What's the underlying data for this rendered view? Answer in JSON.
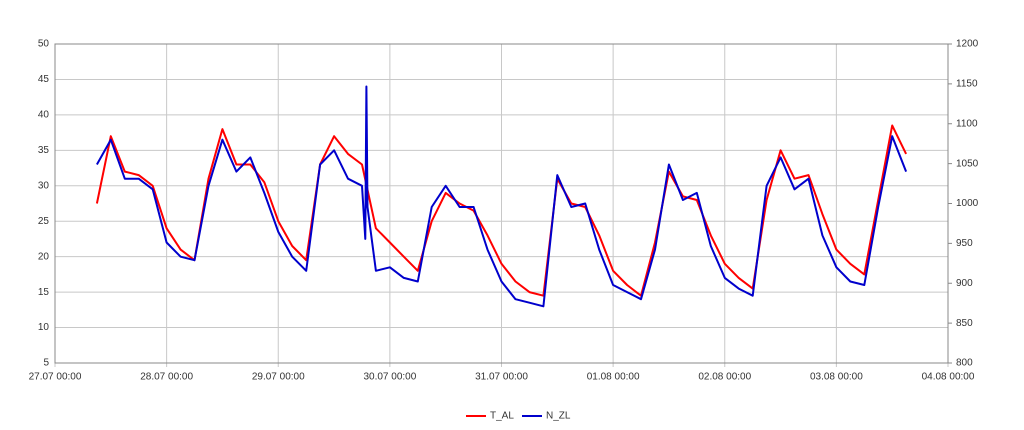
{
  "chart_data": {
    "type": "line",
    "xlim": [
      0,
      8
    ],
    "xticks": [
      {
        "value": 0,
        "label": "27.07 00:00"
      },
      {
        "value": 1,
        "label": "28.07 00:00"
      },
      {
        "value": 2,
        "label": "29.07 00:00"
      },
      {
        "value": 3,
        "label": "30.07 00:00"
      },
      {
        "value": 4,
        "label": "31.07 00:00"
      },
      {
        "value": 5,
        "label": "01.08 00:00"
      },
      {
        "value": 6,
        "label": "02.08 00:00"
      },
      {
        "value": 7,
        "label": "03.08 00:00"
      },
      {
        "value": 8,
        "label": "04.08 00:00"
      }
    ],
    "ylim": [
      5,
      50
    ],
    "yticks": [
      5,
      10,
      15,
      20,
      25,
      30,
      35,
      40,
      45,
      50
    ],
    "y2lim": [
      800,
      1200
    ],
    "y2ticks": [
      800,
      850,
      900,
      950,
      1000,
      1050,
      1100,
      1150,
      1200
    ],
    "grid": true,
    "legend": "bottom",
    "series": [
      {
        "name": "T_AL",
        "color": "#ff0000",
        "x": [
          0.375,
          0.5,
          0.625,
          0.75,
          0.875,
          1,
          1.125,
          1.25,
          1.375,
          1.5,
          1.625,
          1.75,
          1.875,
          2,
          2.125,
          2.25,
          2.375,
          2.5,
          2.625,
          2.75,
          2.875,
          3,
          3.125,
          3.25,
          3.375,
          3.5,
          3.625,
          3.75,
          3.875,
          4,
          4.125,
          4.25,
          4.375,
          4.5,
          4.625,
          4.75,
          4.875,
          5,
          5.125,
          5.25,
          5.375,
          5.5,
          5.625,
          5.75,
          5.875,
          6,
          6.125,
          6.25,
          6.375,
          6.5,
          6.625,
          6.75,
          6.875,
          7,
          7.125,
          7.25,
          7.375,
          7.5,
          7.625
        ],
        "values": [
          27.5,
          37,
          32,
          31.5,
          30,
          24,
          21,
          19.5,
          31,
          38,
          33,
          33,
          30.5,
          25,
          21.5,
          19.5,
          33,
          37,
          34.5,
          33,
          24,
          22,
          20,
          18,
          25,
          29,
          27.5,
          26.5,
          23,
          19,
          16.5,
          15,
          14.5,
          31,
          27.5,
          27,
          23,
          18,
          16,
          14.5,
          22,
          32,
          28.5,
          28,
          23,
          19,
          17,
          15.5,
          28,
          35,
          31,
          31.5,
          26,
          21,
          19,
          17.5,
          28,
          38.5,
          34.5
        ]
      },
      {
        "name": "N_ZL",
        "color": "#0000cc",
        "x": [
          0.375,
          0.5,
          0.625,
          0.75,
          0.875,
          1,
          1.125,
          1.25,
          1.375,
          1.5,
          1.625,
          1.75,
          1.875,
          2,
          2.125,
          2.25,
          2.375,
          2.5,
          2.625,
          2.75,
          2.78,
          2.79,
          2.8,
          2.875,
          3,
          3.125,
          3.25,
          3.375,
          3.5,
          3.625,
          3.75,
          3.875,
          4,
          4.125,
          4.25,
          4.375,
          4.5,
          4.625,
          4.75,
          4.875,
          5,
          5.125,
          5.25,
          5.375,
          5.5,
          5.625,
          5.75,
          5.875,
          6,
          6.125,
          6.25,
          6.375,
          6.5,
          6.625,
          6.75,
          6.875,
          7,
          7.125,
          7.25,
          7.375,
          7.5,
          7.625
        ],
        "values": [
          33,
          36.5,
          31,
          31,
          29.5,
          22,
          20,
          19.5,
          30,
          36.5,
          32,
          34,
          29,
          23.5,
          20,
          18,
          33,
          35,
          31,
          30,
          22.5,
          44,
          27,
          18,
          18.5,
          17,
          16.5,
          27,
          30,
          27,
          27,
          21,
          16.5,
          14,
          13.5,
          13,
          31.5,
          27,
          27.5,
          21,
          16,
          15,
          14,
          21,
          33,
          28,
          29,
          21.5,
          17,
          15.5,
          14.5,
          30,
          34,
          29.5,
          31,
          23,
          18.5,
          16.5,
          16,
          27,
          37,
          32
        ]
      }
    ]
  }
}
